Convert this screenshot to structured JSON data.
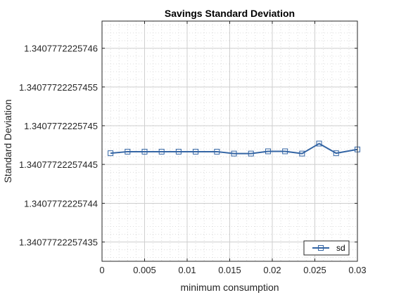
{
  "chart_data": {
    "type": "line",
    "title": "Savings Standard Deviation",
    "xlabel": "minimum consumption",
    "ylabel": "Standard Deviation",
    "xlim": [
      0,
      0.03
    ],
    "ylim": [
      1.340777222574325,
      1.340777222574635
    ],
    "grid": true,
    "minor_grid": true,
    "legend_position": "bottom-right",
    "x_ticks": [
      {
        "value": 0,
        "label": "0"
      },
      {
        "value": 0.005,
        "label": "0.005"
      },
      {
        "value": 0.01,
        "label": "0.01"
      },
      {
        "value": 0.015,
        "label": "0.015"
      },
      {
        "value": 0.02,
        "label": "0.02"
      },
      {
        "value": 0.025,
        "label": "0.025"
      },
      {
        "value": 0.03,
        "label": "0.03"
      }
    ],
    "y_ticks": [
      {
        "value": 1.34077722257435,
        "label": "1.34077722257435"
      },
      {
        "value": 1.3407772225744,
        "label": "1.3407772225744"
      },
      {
        "value": 1.34077722257445,
        "label": "1.34077722257445"
      },
      {
        "value": 1.3407772225745,
        "label": "1.3407772225745"
      },
      {
        "value": 1.34077722257455,
        "label": "1.34077722257455"
      },
      {
        "value": 1.3407772225746,
        "label": "1.3407772225746"
      }
    ],
    "series": [
      {
        "name": "sd",
        "color": "#3465a4",
        "marker": "square",
        "x": [
          0.001,
          0.003,
          0.005,
          0.007,
          0.009,
          0.011,
          0.0135,
          0.0155,
          0.0175,
          0.0195,
          0.0215,
          0.0235,
          0.0255,
          0.0275,
          0.03
        ],
        "y": [
          1.3407772225744645,
          1.3407772225744665,
          1.3407772225744665,
          1.3407772225744665,
          1.3407772225744665,
          1.3407772225744665,
          1.3407772225744665,
          1.340777222574464,
          1.340777222574464,
          1.340777222574467,
          1.340777222574467,
          1.340777222574464,
          1.340777222574477,
          1.3407772225744645,
          1.3407772225744694
        ]
      }
    ]
  },
  "colors": {
    "axis": "#262626",
    "grid": "#dcdcdc",
    "line": "#3465a4"
  }
}
